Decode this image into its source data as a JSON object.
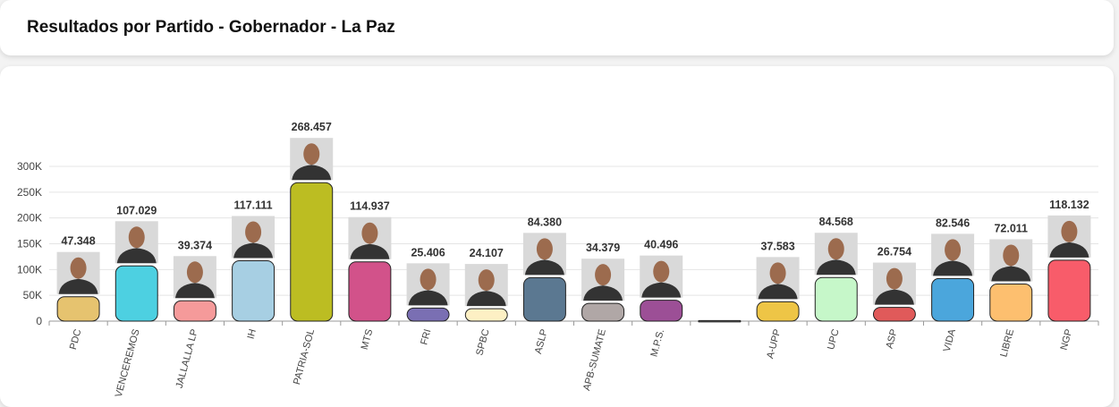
{
  "chart_data": {
    "type": "bar",
    "title": "Resultados por Partido - Gobernador - La Paz",
    "categories": [
      "PDC",
      "VENCEREMOS",
      "JALLALLA LP",
      "IH",
      "PATRIA-SOL",
      "MTS",
      "FRI",
      "SPBC",
      "ASLP",
      "APB-SUMATE",
      "M.P.S.",
      null,
      "A-UPP",
      "UPC",
      "ASP",
      "VIDA",
      "LIBRE",
      "NGP"
    ],
    "values": [
      47348,
      107029,
      39374,
      117111,
      268457,
      114937,
      25406,
      24107,
      84380,
      34379,
      40496,
      1000,
      37583,
      84568,
      26754,
      82546,
      72011,
      118132
    ],
    "value_labels": [
      "47.348",
      "107.029",
      "39.374",
      "117.111",
      "268.457",
      "114.937",
      "25.406",
      "24.107",
      "84.380",
      "34.379",
      "40.496",
      null,
      "37.583",
      "84.568",
      "26.754",
      "82.546",
      "72.011",
      "118.132"
    ],
    "colors": [
      "#e6c36f",
      "#4dd0e1",
      "#f59a9a",
      "#a7cfe3",
      "#bcbd22",
      "#d2528a",
      "#7a6fb3",
      "#fdf0c4",
      "#5b7891",
      "#b0a7a6",
      "#9c4f96",
      "#777777",
      "#eec546",
      "#c6f7c9",
      "#e05a5a",
      "#4ba6dc",
      "#fdbf6f",
      "#f85c6a"
    ],
    "ylim": [
      0,
      300000
    ],
    "yticks": [
      {
        "value": 0,
        "label": "0"
      },
      {
        "value": 50000,
        "label": "50K"
      },
      {
        "value": 100000,
        "label": "100K"
      },
      {
        "value": 150000,
        "label": "150K"
      },
      {
        "value": 200000,
        "label": "200K"
      },
      {
        "value": 250000,
        "label": "250K"
      },
      {
        "value": 300000,
        "label": "300K"
      }
    ],
    "grid": true
  }
}
